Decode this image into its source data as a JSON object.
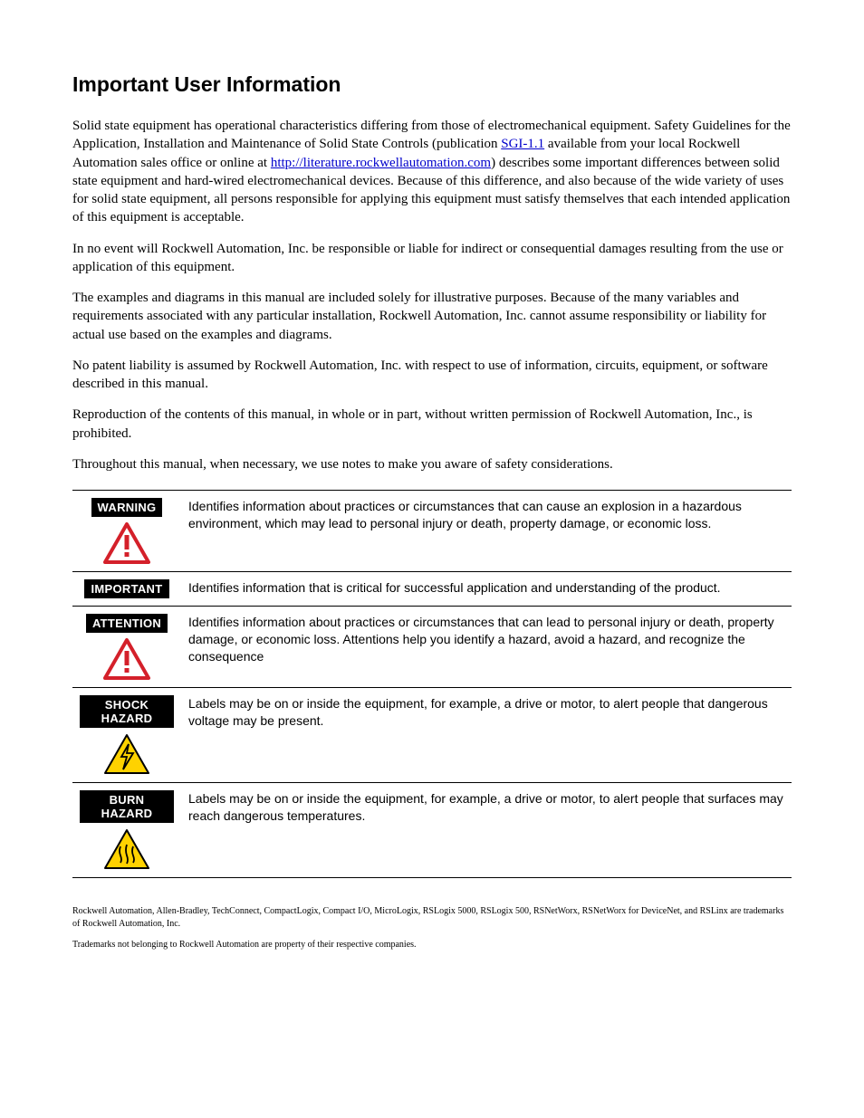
{
  "title": "Important User Information",
  "para1_a": "Solid state equipment has operational characteristics differing from those of electromechanical equipment. Safety Guidelines for the Application, Installation and Maintenance of Solid State Controls (publication ",
  "para1_link1": "SGI-1.1",
  "para1_b": " available from your local Rockwell Automation sales office or online at ",
  "para1_link2": "http://literature.rockwellautomation.com",
  "para1_c": ") describes some important differences between solid state equipment and hard-wired electromechanical devices. Because of this difference, and also because of the wide variety of uses for solid state equipment, all persons responsible for applying this equipment must satisfy themselves that each intended application of this equipment is acceptable.",
  "para2": "In no event will Rockwell Automation, Inc. be responsible or liable for indirect or consequential damages resulting from the use or application of this equipment.",
  "para3": "The examples and diagrams in this manual are included solely for illustrative purposes. Because of the many variables and requirements associated with any particular installation, Rockwell Automation, Inc. cannot assume responsibility or liability for actual use based on the examples and diagrams.",
  "para4": "No patent liability is assumed by Rockwell Automation, Inc. with respect to use of information, circuits, equipment, or software described in this manual.",
  "para5": "Reproduction of the contents of this manual, in whole or in part, without written permission of Rockwell Automation, Inc., is prohibited.",
  "para6": "Throughout this manual, when necessary, we use notes to make you aware of safety considerations.",
  "table": {
    "rows": [
      {
        "label": "WARNING",
        "icon": "warning-red",
        "desc": "Identifies information about practices or circumstances that can cause an explosion in a hazardous environment, which may lead to personal injury or death, property damage, or economic loss."
      },
      {
        "label": "IMPORTANT",
        "icon": "",
        "desc": "Identifies information that is critical for successful application and understanding of the product."
      },
      {
        "label": "ATTENTION",
        "icon": "warning-red",
        "desc": "Identifies information about practices or circumstances that can lead to personal injury or death, property damage, or economic loss. Attentions help you identify a hazard, avoid a hazard, and recognize the consequence"
      },
      {
        "label": "SHOCK HAZARD",
        "icon": "shock",
        "desc": "Labels may be on or inside the equipment, for example, a drive or motor, to alert people that dangerous voltage may be present."
      },
      {
        "label": "BURN HAZARD",
        "icon": "burn",
        "desc": "Labels may be on or inside the equipment, for example, a drive or motor, to alert people that surfaces may reach dangerous temperatures."
      }
    ]
  },
  "footnote1": "Rockwell Automation, Allen-Bradley, TechConnect, CompactLogix, Compact I/O, MicroLogix, RSLogix 5000, RSLogix 500, RSNetWorx, RSNetWorx for DeviceNet, and RSLinx are trademarks of Rockwell Automation, Inc.",
  "footnote2": "Trademarks not belonging to Rockwell Automation are property of their respective companies.",
  "colors": {
    "red": "#d4202a",
    "yellow": "#ffd200",
    "black": "#000000"
  }
}
